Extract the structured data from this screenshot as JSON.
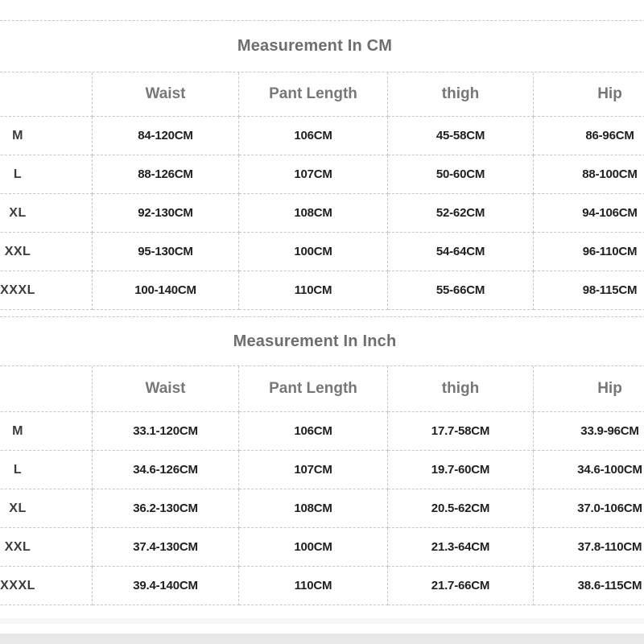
{
  "colors": {
    "background": "#ffffff",
    "dashed_border": "#c7c7c7",
    "title_text": "#6e6e6e",
    "header_text": "#777777",
    "size_label_text": "#3c3c3c",
    "value_text": "#202020",
    "light_strip": "#f6f6f6",
    "bottom_bar": "#e8e8e8"
  },
  "tables": [
    {
      "title": "Measurement In CM",
      "headers": [
        "Waist",
        "Pant Length",
        "thigh",
        "Hip"
      ],
      "rows": [
        [
          "M",
          "84-120CM",
          "106CM",
          "45-58CM",
          "86-96CM"
        ],
        [
          "L",
          "88-126CM",
          "107CM",
          "50-60CM",
          "88-100CM"
        ],
        [
          "XL",
          "92-130CM",
          "108CM",
          "52-62CM",
          "94-106CM"
        ],
        [
          "XXL",
          "95-130CM",
          "100CM",
          "54-64CM",
          "96-110CM"
        ],
        [
          "XXXL",
          "100-140CM",
          "110CM",
          "55-66CM",
          "98-115CM"
        ]
      ]
    },
    {
      "title": "Measurement In Inch",
      "headers": [
        "Waist",
        "Pant Length",
        "thigh",
        "Hip"
      ],
      "rows": [
        [
          "M",
          "33.1-120CM",
          "106CM",
          "17.7-58CM",
          "33.9-96CM"
        ],
        [
          "L",
          "34.6-126CM",
          "107CM",
          "19.7-60CM",
          "34.6-100CM"
        ],
        [
          "XL",
          "36.2-130CM",
          "108CM",
          "20.5-62CM",
          "37.0-106CM"
        ],
        [
          "XXL",
          "37.4-130CM",
          "100CM",
          "21.3-64CM",
          "37.8-110CM"
        ],
        [
          "XXXL",
          "39.4-140CM",
          "110CM",
          "21.7-66CM",
          "38.6-115CM"
        ]
      ]
    }
  ]
}
